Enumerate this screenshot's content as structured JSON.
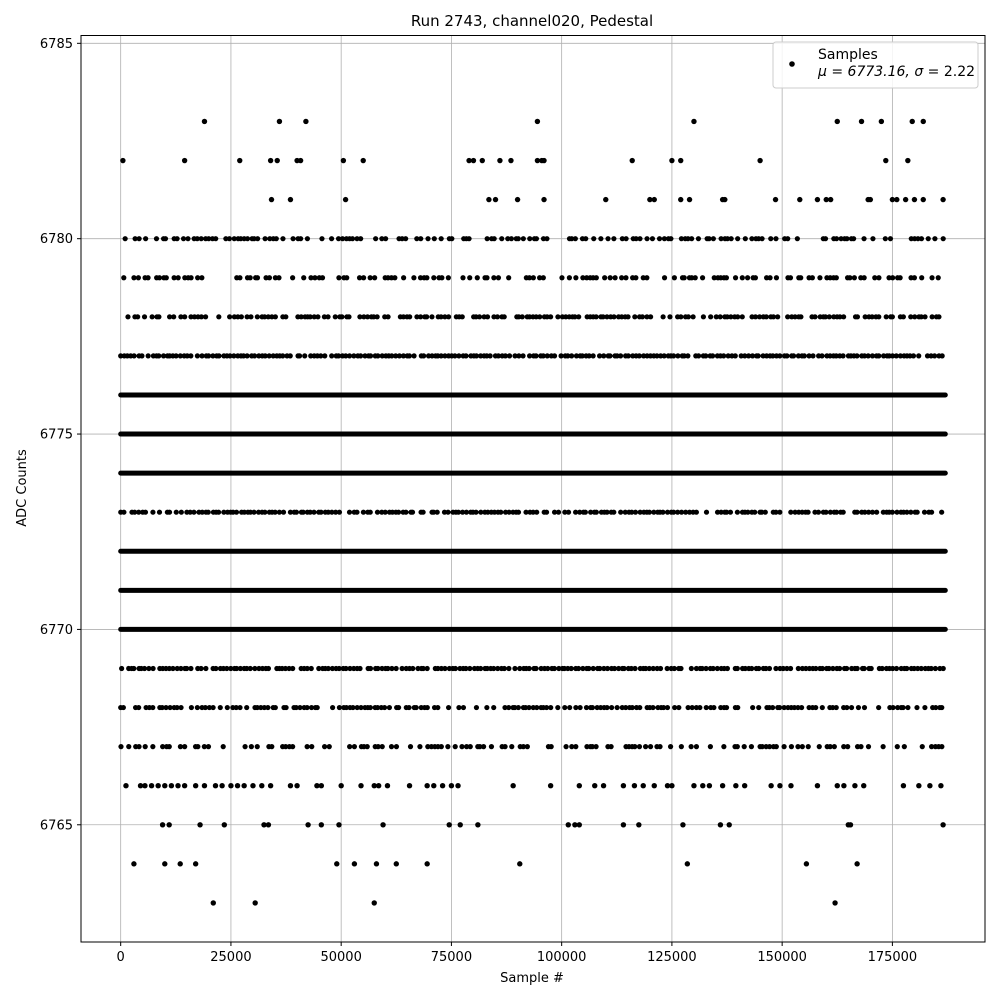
{
  "chart_data": {
    "type": "scatter",
    "title": "Run 2743, channel020, Pedestal",
    "xlabel": "Sample #",
    "ylabel": "ADC Counts",
    "xlim": [
      -9000,
      196000
    ],
    "ylim": [
      6762,
      6785.2
    ],
    "xticks": [
      0,
      25000,
      50000,
      75000,
      100000,
      125000,
      150000,
      175000
    ],
    "yticks": [
      6765,
      6770,
      6775,
      6780,
      6785
    ],
    "grid": true,
    "legend_position": "top-right",
    "legend": {
      "label": "Samples",
      "stats_prefix": "μ = 6773.16, ",
      "stats_sigma": "σ",
      "stats_suffix": " = 2.22"
    },
    "marker_color": "#000000",
    "mean": 6773.16,
    "sigma": 2.22,
    "x_max": 187000,
    "levels": [
      {
        "y": 6767,
        "density": 0.55
      },
      {
        "y": 6768,
        "density": 0.7
      },
      {
        "y": 6769,
        "density": 0.9
      },
      {
        "y": 6770,
        "density": 1.0
      },
      {
        "y": 6771,
        "density": 1.0
      },
      {
        "y": 6772,
        "density": 1.0
      },
      {
        "y": 6773,
        "density": 0.85
      },
      {
        "y": 6774,
        "density": 1.0
      },
      {
        "y": 6775,
        "density": 1.0
      },
      {
        "y": 6776,
        "density": 1.0
      },
      {
        "y": 6777,
        "density": 0.9
      },
      {
        "y": 6778,
        "density": 0.7
      },
      {
        "y": 6779,
        "density": 0.6
      },
      {
        "y": 6780,
        "density": 0.55
      }
    ],
    "outliers": [
      {
        "y": 6783,
        "x": [
          19000,
          36000,
          42000,
          94500,
          130000,
          162500,
          168000,
          172500,
          179500,
          182000
        ]
      },
      {
        "y": 6782,
        "x": [
          500,
          14500,
          27000,
          34000,
          35500,
          40000,
          40800,
          50500,
          55000,
          79000,
          80000,
          82000,
          86000,
          88500,
          94500,
          95500,
          96000,
          116000,
          125000,
          127000,
          145000,
          173500,
          178500
        ]
      },
      {
        "y": 6781,
        "x": [
          34200,
          38500,
          51000,
          83500,
          85000,
          90000,
          96000,
          110000,
          120000,
          121000,
          127000,
          129000,
          136500,
          137000,
          148500,
          154000,
          158000,
          160000,
          161000,
          169500,
          170000,
          175000,
          176000,
          178000,
          180000,
          182000,
          186500
        ]
      },
      {
        "y": 6766,
        "x": [
          1200,
          4500,
          5500,
          7000,
          8500,
          10000,
          11500,
          13000,
          14500,
          17000,
          19000,
          21500,
          23000,
          25000,
          26500,
          28000,
          30000,
          32000,
          34000,
          38500,
          40000,
          44500,
          45500,
          50000,
          54500,
          57500,
          58500,
          60500,
          65500,
          69500,
          71000,
          73000,
          75000,
          76500,
          89000,
          97500,
          104000,
          107500,
          109500,
          114000,
          116500,
          118500,
          121000,
          124000,
          125000,
          130000,
          132000,
          133500,
          136500,
          139500,
          141500,
          147500,
          149500,
          152000,
          158000,
          162500,
          164000,
          166500,
          168500,
          177500,
          181000,
          183500,
          186000
        ]
      },
      {
        "y": 6765,
        "x": [
          9500,
          11000,
          18000,
          23500,
          32500,
          33500,
          42500,
          45500,
          49500,
          59500,
          74500,
          77000,
          81000,
          101500,
          103000,
          104000,
          114000,
          117500,
          127500,
          136000,
          138000,
          165000,
          165500,
          186500
        ]
      },
      {
        "y": 6764,
        "x": [
          3000,
          10000,
          13500,
          17000,
          49000,
          53000,
          58000,
          62500,
          69500,
          90500,
          128500,
          155500,
          167000
        ]
      },
      {
        "y": 6763,
        "x": [
          21000,
          30500,
          57500,
          162000
        ]
      }
    ]
  }
}
